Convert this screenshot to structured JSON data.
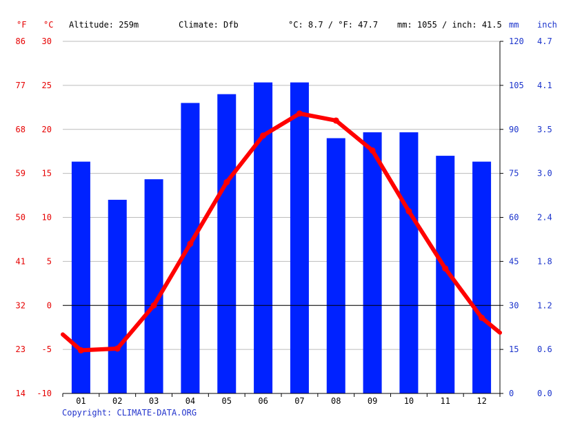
{
  "header": {
    "unit_f": "°F",
    "unit_c": "°C",
    "altitude": "Altitude: 259m",
    "climate": "Climate: Dfb",
    "temp_avg": "°C: 8.7 / °F: 47.7",
    "precip_total": "mm: 1055 / inch: 41.5",
    "unit_mm": "mm",
    "unit_inch": "inch"
  },
  "footer": {
    "copyright": "Copyright: CLIMATE-DATA.ORG"
  },
  "colors": {
    "temperature": "#ff0000",
    "precipitation": "#0022ff",
    "grid": "#bbbbbb",
    "axis_c": "#e60000",
    "axis_mm": "#1a33cc"
  },
  "chart_data": {
    "type": "bar",
    "categories": [
      "01",
      "02",
      "03",
      "04",
      "05",
      "06",
      "07",
      "08",
      "09",
      "10",
      "11",
      "12"
    ],
    "series": [
      {
        "type": "bar",
        "axis": "mm",
        "values": [
          79,
          66,
          73,
          99,
          102,
          106,
          106,
          87,
          89,
          89,
          81,
          79
        ]
      },
      {
        "type": "line",
        "axis": "celsius",
        "values": [
          -5.1,
          -4.9,
          0.0,
          7.0,
          14.0,
          19.3,
          21.8,
          21.0,
          17.6,
          10.7,
          4.2,
          -1.4
        ]
      }
    ],
    "line_edge_values": {
      "left": -3.3,
      "right": -3.1
    },
    "axes": {
      "celsius": {
        "range": [
          -10,
          30
        ],
        "ticks": [
          "-10",
          "-5",
          "0",
          "5",
          "10",
          "15",
          "20",
          "25",
          "30"
        ]
      },
      "fahrenheit": {
        "ticks": [
          "14",
          "23",
          "32",
          "41",
          "50",
          "59",
          "68",
          "77",
          "86"
        ]
      },
      "mm": {
        "range": [
          0,
          120
        ],
        "ticks": [
          "0",
          "15",
          "30",
          "45",
          "60",
          "75",
          "90",
          "105",
          "120"
        ]
      },
      "inch": {
        "ticks": [
          "0.0",
          "0.6",
          "1.2",
          "1.8",
          "2.4",
          "3.0",
          "3.5",
          "4.1",
          "4.7"
        ]
      }
    },
    "grid": true
  }
}
